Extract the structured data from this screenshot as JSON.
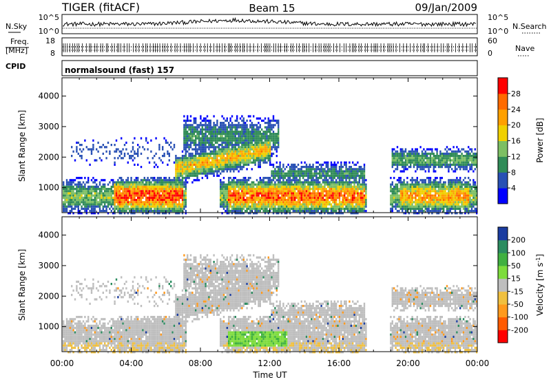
{
  "header": {
    "station": "TIGER (fitACF)",
    "beam": "Beam 15",
    "date": "09/Jan/2009"
  },
  "strip_labels": {
    "nsky": "N.Sky",
    "nsky_ticks": [
      "10^5",
      "10^0"
    ],
    "nsearch": "N.Search",
    "nsearch_ticks": [
      "10^5",
      "10^0"
    ],
    "freq_line1": "Freq.",
    "freq_line2": "[MHz]",
    "freq_ticks": [
      "18",
      "8"
    ],
    "nave": "Nave",
    "nave_ticks": [
      "60",
      "0"
    ],
    "cpid": "CPID",
    "cpid_value": "normalsound (fast) 157"
  },
  "chart_data": [
    {
      "type": "heatmap",
      "name": "power",
      "ylabel": "Slant Range [km]",
      "xlabel": "",
      "x_ticks": [
        "00:00",
        "04:00",
        "08:00",
        "12:00",
        "16:00",
        "20:00",
        "00:00"
      ],
      "xlim_hours": [
        0,
        24
      ],
      "y_ticks": [
        1000,
        2000,
        3000,
        4000
      ],
      "ylim": [
        180,
        4600
      ],
      "colorbar": {
        "label": "Power [dB]",
        "ticks": [
          "4",
          "8",
          "12",
          "16",
          "20",
          "24",
          "28"
        ],
        "colors": [
          "#0000ff",
          "#2850b4",
          "#2f8b57",
          "#7cbf63",
          "#f0d000",
          "#ffa000",
          "#ff6a00",
          "#ff0000"
        ]
      }
    },
    {
      "type": "heatmap",
      "name": "velocity",
      "ylabel": "Slant Range [km]",
      "xlabel": "Time UT",
      "x_ticks": [
        "00:00",
        "04:00",
        "08:00",
        "12:00",
        "16:00",
        "20:00",
        "00:00"
      ],
      "xlim_hours": [
        0,
        24
      ],
      "y_ticks": [
        1000,
        2000,
        3000,
        4000
      ],
      "ylim": [
        180,
        4600
      ],
      "colorbar": {
        "label": "Velocity [m s^-1]",
        "ticks": [
          "200",
          "100",
          "50",
          "15",
          "-15",
          "-50",
          "-100",
          "-200"
        ],
        "colors": [
          "#1a3ca0",
          "#2b8c60",
          "#40b040",
          "#7ddc3c",
          "#bebebe",
          "#f0c040",
          "#ff9a1e",
          "#ff5a00",
          "#ff0000"
        ]
      }
    }
  ]
}
